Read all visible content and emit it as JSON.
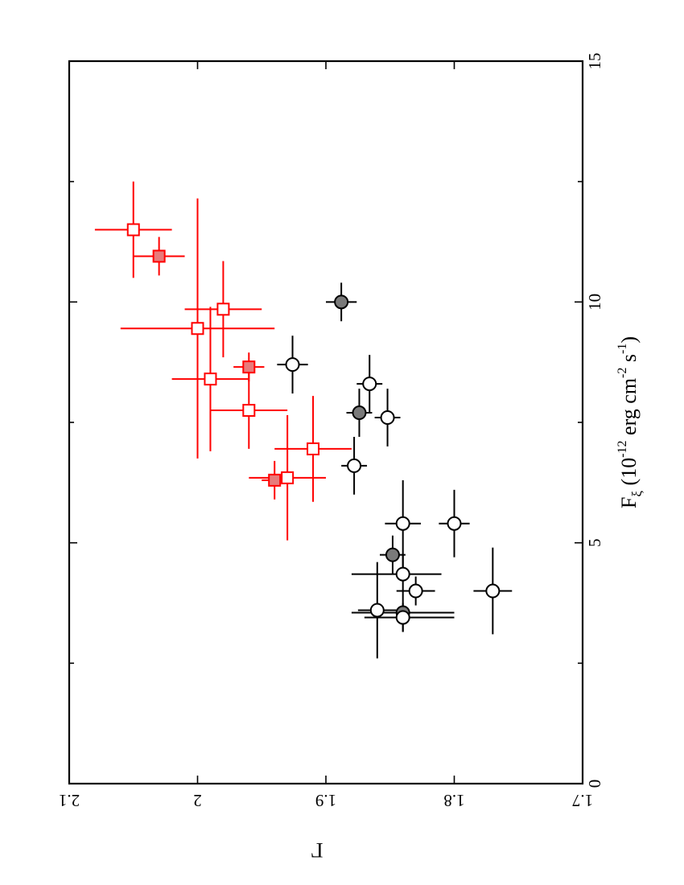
{
  "chart_data": {
    "type": "scatter",
    "orientation": "rotated 90 degrees clockwise (page read in landscape)",
    "x": {
      "label_parts": [
        "F",
        "ξ",
        " (10",
        "-12",
        " erg cm",
        "-2",
        " s",
        "-1",
        ")"
      ],
      "range": [
        0,
        15
      ],
      "major_ticks": [
        0,
        5,
        10,
        15
      ],
      "minor_ticks": [
        2.5,
        7.5,
        12.5
      ],
      "tick_labels": [
        "0",
        "5",
        "10",
        "15"
      ]
    },
    "y": {
      "label": "Γ",
      "range": [
        1.7,
        2.1
      ],
      "major_ticks": [
        1.7,
        1.8,
        1.9,
        2,
        2.1
      ],
      "tick_labels": [
        "1.7",
        "1.8",
        "1.9",
        "2",
        "2.1"
      ]
    },
    "grid": false,
    "legend": "none",
    "series": [
      {
        "color": "#000000",
        "marker": "circle",
        "points": [
          {
            "x": 10.0,
            "y": 1.888,
            "xerr": 0.4,
            "yerr": [
              0.012,
              0.012
            ],
            "filled": true
          },
          {
            "x": 8.7,
            "y": 1.926,
            "xerr": 0.6,
            "yerr": [
              0.012,
              0.012
            ],
            "filled": false
          },
          {
            "x": 8.3,
            "y": 1.866,
            "xerr": 0.6,
            "yerr": [
              0.01,
              0.01
            ],
            "filled": false
          },
          {
            "x": 7.7,
            "y": 1.874,
            "xerr": 0.5,
            "yerr": [
              0.01,
              0.01
            ],
            "filled": true
          },
          {
            "x": 7.6,
            "y": 1.852,
            "xerr": 0.6,
            "yerr": [
              0.01,
              0.01
            ],
            "filled": false
          },
          {
            "x": 6.6,
            "y": 1.878,
            "xerr": 0.6,
            "yerr": [
              0.01,
              0.01
            ],
            "filled": false
          },
          {
            "x": 5.4,
            "y": 1.84,
            "xerr": 0.9,
            "yerr": [
              0.014,
              0.014
            ],
            "filled": false
          },
          {
            "x": 5.4,
            "y": 1.8,
            "xerr": 0.7,
            "yerr": [
              0.012,
              0.012
            ],
            "filled": false
          },
          {
            "x": 4.75,
            "y": 1.848,
            "xerr": 0.4,
            "yerr": [
              0.01,
              0.01
            ],
            "filled": true
          },
          {
            "x": 4.35,
            "y": 1.84,
            "xerr": 0.4,
            "yerr": [
              0.03,
              0.04
            ],
            "filled": false
          },
          {
            "x": 4.0,
            "y": 1.83,
            "xerr": 0.3,
            "yerr": [
              0.015,
              0.015
            ],
            "filled": false
          },
          {
            "x": 4.0,
            "y": 1.77,
            "xerr": 0.9,
            "yerr": [
              0.015,
              0.015
            ],
            "filled": false
          },
          {
            "x": 3.6,
            "y": 1.86,
            "xerr": 1.0,
            "yerr": [
              0.015,
              0.015
            ],
            "filled": false
          },
          {
            "x": 3.55,
            "y": 1.84,
            "xerr": 0.4,
            "yerr": [
              0.04,
              0.04
            ],
            "filled": true
          },
          {
            "x": 3.45,
            "y": 1.84,
            "xerr": 0.3,
            "yerr": [
              0.04,
              0.03
            ],
            "filled": false
          }
        ]
      },
      {
        "color": "#ff0000",
        "marker": "square",
        "points": [
          {
            "x": 11.5,
            "y": 2.05,
            "xerr": 1.0,
            "yerr": [
              0.03,
              0.03
            ],
            "filled": false
          },
          {
            "x": 10.95,
            "y": 2.03,
            "xerr": 0.4,
            "yerr": [
              0.02,
              0.02
            ],
            "filled": true
          },
          {
            "x": 9.85,
            "y": 1.98,
            "xerr": 1.0,
            "yerr": [
              0.03,
              0.03
            ],
            "filled": false
          },
          {
            "x": 9.45,
            "y": 2.0,
            "xerr": 2.7,
            "yerr": [
              0.06,
              0.06
            ],
            "filled": false
          },
          {
            "x": 8.65,
            "y": 1.96,
            "xerr": 0.3,
            "yerr": [
              0.012,
              0.012
            ],
            "filled": true
          },
          {
            "x": 8.4,
            "y": 1.99,
            "xerr": 1.5,
            "yerr": [
              0.03,
              0.03
            ],
            "filled": false
          },
          {
            "x": 7.75,
            "y": 1.96,
            "xerr": 0.8,
            "yerr": [
              0.03,
              0.03
            ],
            "filled": false
          },
          {
            "x": 6.95,
            "y": 1.91,
            "xerr": 1.1,
            "yerr": [
              0.03,
              0.03
            ],
            "filled": false
          },
          {
            "x": 6.35,
            "y": 1.93,
            "xerr": 1.3,
            "yerr": [
              0.03,
              0.03
            ],
            "filled": false
          },
          {
            "x": 6.3,
            "y": 1.94,
            "xerr": 0.4,
            "yerr": [
              0.01,
              0.01
            ],
            "filled": true
          }
        ]
      }
    ]
  }
}
